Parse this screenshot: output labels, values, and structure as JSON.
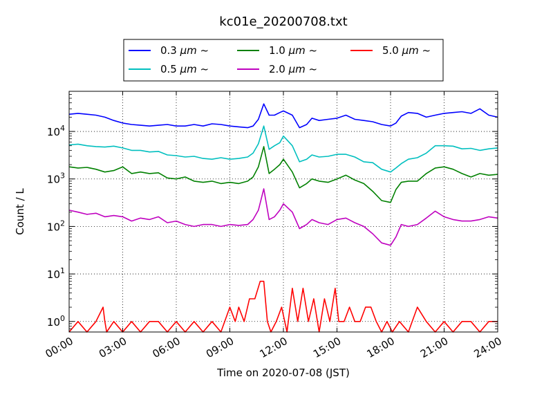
{
  "chart_data": {
    "type": "line",
    "title": "kc01e_20200708.txt",
    "xlabel": "Time on 2020-07-08 (JST)",
    "ylabel": "Count / L",
    "xlim_hours": [
      0,
      24
    ],
    "ylim": [
      0.6,
      70000
    ],
    "yscale": "log",
    "grid": true,
    "legend_position": "top-center",
    "x_tick_labels": [
      "00:00",
      "03:00",
      "06:00",
      "09:00",
      "12:00",
      "15:00",
      "18:00",
      "21:00",
      "24:00"
    ],
    "x_tick_hours": [
      0,
      3,
      6,
      9,
      12,
      15,
      18,
      21,
      24
    ],
    "y_ticks": [
      1,
      10,
      100,
      1000,
      10000
    ],
    "y_tick_labels": [
      {
        "base": "10",
        "exp": "0"
      },
      {
        "base": "10",
        "exp": "1"
      },
      {
        "base": "10",
        "exp": "2"
      },
      {
        "base": "10",
        "exp": "3"
      },
      {
        "base": "10",
        "exp": "4"
      }
    ],
    "series": [
      {
        "name": "0.3 μm ~",
        "label_main": "0.3 ",
        "label_unit": "μm",
        "label_tail": "  ~",
        "color": "#0000ff",
        "x": [
          0,
          0.5,
          1,
          1.5,
          2,
          2.5,
          3,
          3.5,
          4,
          4.5,
          5,
          5.5,
          6,
          6.5,
          7,
          7.5,
          8,
          8.5,
          9,
          9.5,
          10,
          10.3,
          10.6,
          10.9,
          11.2,
          11.5,
          11.8,
          12,
          12.5,
          12.9,
          13.3,
          13.6,
          14,
          14.5,
          15,
          15.5,
          16,
          16.5,
          17,
          17.5,
          18,
          18.3,
          18.6,
          19,
          19.5,
          20,
          20.5,
          21,
          21.5,
          22,
          22.5,
          23,
          23.5,
          24
        ],
        "values": [
          23000,
          24000,
          23000,
          22000,
          20000,
          17000,
          15000,
          14000,
          13500,
          13000,
          13500,
          14000,
          13000,
          13000,
          14000,
          13000,
          14500,
          14000,
          13000,
          12500,
          12000,
          13000,
          18000,
          38000,
          22000,
          22000,
          25000,
          27000,
          22000,
          12000,
          14000,
          19000,
          17000,
          18000,
          19000,
          22000,
          18000,
          17000,
          16000,
          14000,
          13000,
          15000,
          21000,
          25000,
          24000,
          20000,
          22000,
          24000,
          25000,
          26000,
          24000,
          30000,
          22000,
          20000
        ]
      },
      {
        "name": "0.5 μm ~",
        "label_main": "0.5 ",
        "label_unit": "μm",
        "label_tail": "  ~",
        "color": "#00bfbf",
        "x": [
          0,
          0.5,
          1,
          1.5,
          2,
          2.5,
          3,
          3.5,
          4,
          4.5,
          5,
          5.5,
          6,
          6.5,
          7,
          7.5,
          8,
          8.5,
          9,
          9.5,
          10,
          10.3,
          10.6,
          10.9,
          11.2,
          11.5,
          11.8,
          12,
          12.5,
          12.9,
          13.3,
          13.6,
          14,
          14.5,
          15,
          15.5,
          16,
          16.5,
          17,
          17.5,
          18,
          18.3,
          18.6,
          19,
          19.5,
          20,
          20.5,
          21,
          21.5,
          22,
          22.5,
          23,
          23.5,
          24
        ],
        "values": [
          5200,
          5400,
          5000,
          4800,
          4700,
          4900,
          4500,
          4000,
          4000,
          3700,
          3800,
          3200,
          3100,
          2900,
          3000,
          2700,
          2600,
          2800,
          2600,
          2700,
          2900,
          3500,
          5500,
          13000,
          4200,
          5000,
          5800,
          8000,
          5000,
          2300,
          2600,
          3200,
          2900,
          3000,
          3300,
          3300,
          2900,
          2300,
          2200,
          1600,
          1400,
          1700,
          2100,
          2600,
          2800,
          3500,
          5000,
          5000,
          4900,
          4300,
          4400,
          4000,
          4300,
          4500
        ]
      },
      {
        "name": "1.0 μm ~",
        "label_main": "1.0 ",
        "label_unit": "μm",
        "label_tail": "  ~",
        "color": "#008000",
        "x": [
          0,
          0.5,
          1,
          1.5,
          2,
          2.5,
          3,
          3.5,
          4,
          4.5,
          5,
          5.5,
          6,
          6.5,
          7,
          7.5,
          8,
          8.5,
          9,
          9.5,
          10,
          10.3,
          10.6,
          10.9,
          11.2,
          11.5,
          11.8,
          12,
          12.5,
          12.9,
          13.3,
          13.6,
          14,
          14.5,
          15,
          15.5,
          16,
          16.5,
          17,
          17.5,
          18,
          18.3,
          18.6,
          19,
          19.5,
          20,
          20.5,
          21,
          21.5,
          22,
          22.5,
          23,
          23.5,
          24
        ],
        "values": [
          1800,
          1700,
          1750,
          1600,
          1400,
          1500,
          1800,
          1300,
          1400,
          1300,
          1350,
          1050,
          1000,
          1100,
          900,
          850,
          900,
          800,
          850,
          800,
          900,
          1100,
          1800,
          4800,
          1300,
          1600,
          2000,
          2600,
          1400,
          650,
          800,
          1000,
          900,
          850,
          1000,
          1200,
          950,
          800,
          550,
          350,
          320,
          600,
          850,
          900,
          900,
          1300,
          1700,
          1800,
          1600,
          1300,
          1100,
          1300,
          1200,
          1250
        ]
      },
      {
        "name": "2.0 μm ~",
        "label_main": "2.0 ",
        "label_unit": "μm",
        "label_tail": "  ~",
        "color": "#bf00bf",
        "x": [
          0,
          0.5,
          1,
          1.5,
          2,
          2.5,
          3,
          3.5,
          4,
          4.5,
          5,
          5.5,
          6,
          6.5,
          7,
          7.5,
          8,
          8.5,
          9,
          9.5,
          10,
          10.3,
          10.6,
          10.9,
          11.2,
          11.5,
          11.8,
          12,
          12.5,
          12.9,
          13.3,
          13.6,
          14,
          14.5,
          15,
          15.5,
          16,
          16.5,
          17,
          17.5,
          18,
          18.3,
          18.6,
          19,
          19.5,
          20,
          20.5,
          21,
          21.5,
          22,
          22.5,
          23,
          23.5,
          24
        ],
        "values": [
          220,
          200,
          180,
          190,
          160,
          170,
          160,
          130,
          150,
          140,
          160,
          120,
          130,
          110,
          100,
          110,
          110,
          100,
          110,
          105,
          110,
          140,
          220,
          620,
          140,
          160,
          220,
          300,
          200,
          90,
          110,
          140,
          120,
          110,
          140,
          150,
          120,
          100,
          70,
          45,
          40,
          60,
          110,
          100,
          110,
          150,
          210,
          160,
          140,
          130,
          130,
          140,
          160,
          150
        ]
      },
      {
        "name": "5.0 μm ~",
        "label_main": "5.0 ",
        "label_unit": "μm",
        "label_tail": "  ~",
        "color": "#ff0000",
        "x": [
          0,
          0.5,
          1,
          1.5,
          1.9,
          2.0,
          2.1,
          2.5,
          3,
          3.5,
          4,
          4.5,
          5,
          5.5,
          6,
          6.5,
          7,
          7.5,
          8,
          8.5,
          9,
          9.3,
          9.5,
          9.8,
          10.1,
          10.4,
          10.7,
          10.9,
          11.1,
          11.3,
          11.6,
          11.9,
          12.2,
          12.5,
          12.8,
          13.1,
          13.4,
          13.7,
          14.0,
          14.3,
          14.6,
          14.9,
          15.1,
          15.4,
          15.7,
          16.0,
          16.3,
          16.6,
          16.9,
          17.2,
          17.5,
          17.8,
          18.1,
          18.5,
          19,
          19.5,
          20,
          20.5,
          21,
          21.5,
          22,
          22.5,
          23,
          23.5,
          24
        ],
        "values": [
          0.6,
          1,
          0.6,
          1,
          2,
          1,
          0.6,
          1,
          0.6,
          1,
          0.6,
          1,
          1,
          0.6,
          1,
          0.6,
          1,
          0.6,
          1,
          0.6,
          2,
          1,
          2,
          1,
          3,
          3,
          7,
          7,
          1,
          0.6,
          1,
          2,
          0.6,
          5,
          1,
          5,
          1,
          3,
          0.6,
          3,
          1,
          5,
          1,
          1,
          2,
          1,
          1,
          2,
          2,
          1,
          0.6,
          1,
          0.6,
          1,
          0.6,
          2,
          1,
          0.6,
          1,
          0.6,
          1,
          1,
          0.6,
          1,
          1
        ]
      }
    ]
  }
}
